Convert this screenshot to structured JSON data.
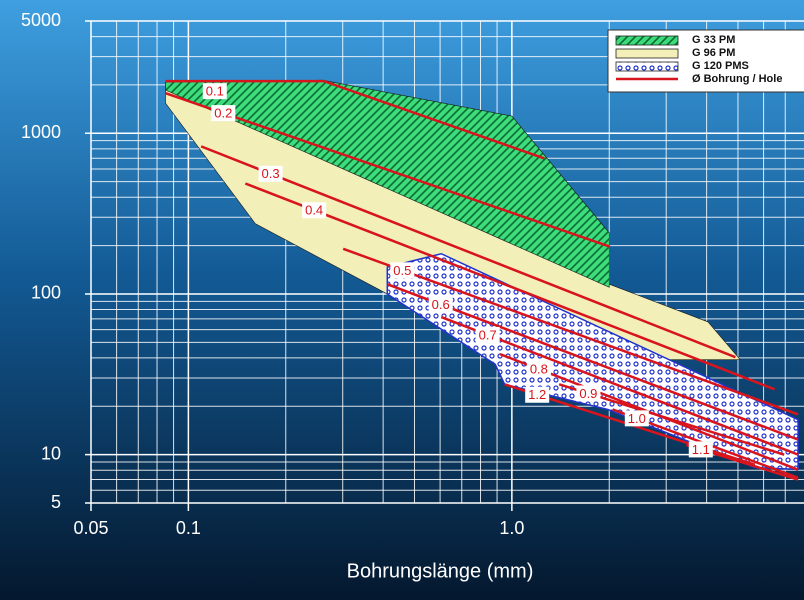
{
  "chart_data": {
    "type": "region",
    "x_label": "Bohrungslänge (mm)",
    "log_x": true,
    "log_y": true,
    "grid": true,
    "legend": "upper right",
    "xlim": [
      0.05,
      8
    ],
    "ylim": [
      5,
      5000
    ],
    "xticks": [
      0.05,
      0.1,
      {
        "value": 1,
        "label": "1.0"
      }
    ],
    "yticks": [
      5,
      10,
      100,
      1000,
      5000
    ],
    "x_minor_ticks": [
      0.06,
      0.07,
      0.08,
      0.09,
      0.2,
      0.3,
      0.4,
      0.5,
      0.6,
      0.7,
      0.8,
      0.9,
      2,
      3,
      4,
      5,
      6,
      7
    ],
    "y_minor_ticks": [
      6,
      7,
      8,
      9,
      20,
      30,
      40,
      50,
      60,
      70,
      80,
      90,
      200,
      300,
      400,
      500,
      600,
      700,
      800,
      900,
      2000,
      3000,
      4000
    ],
    "regions": [
      {
        "name": "G 96 PM",
        "color": "#f3efb8",
        "pattern": "solid",
        "x": [
          0.085,
          2.0,
          4.04,
          5.08,
          0.92,
          0.412,
          0.161,
          0.085
        ],
        "y": [
          2054,
          115,
          67,
          39,
          39,
          100,
          274,
          1540
        ]
      },
      {
        "name": "G 33 PM",
        "color": "#3ddc7a",
        "pattern": "hatch",
        "x": [
          0.085,
          0.26,
          1.0,
          2.0,
          2.0,
          0.085
        ],
        "y": [
          2080,
          2140,
          1280,
          240,
          110,
          1860
        ]
      },
      {
        "name": "G 120 PMS",
        "color": "#2233cc",
        "pattern": "dots",
        "x": [
          0.412,
          0.605,
          7.67,
          7.67,
          5.64,
          1.98,
          0.95,
          0.888,
          0.412
        ],
        "y": [
          147,
          178,
          16.5,
          8.1,
          8.3,
          19.1,
          27.4,
          36.5,
          100
        ]
      }
    ],
    "lines": {
      "name": "Ø Bohrung / Hole",
      "color": "#d8141c",
      "series": [
        {
          "label": "0.1",
          "x": [
            0.085,
            0.262,
            1.26
          ],
          "y": [
            2113,
            2113,
            698
          ]
        },
        {
          "label": "0.2",
          "x": [
            0.085,
            2.01
          ],
          "y": [
            1778,
            197
          ]
        },
        {
          "label": "0.3",
          "x": [
            0.1095,
            4.91
          ],
          "y": [
            829,
            40.4
          ]
        },
        {
          "label": "0.4",
          "x": [
            0.15,
            6.49
          ],
          "y": [
            487,
            25.5
          ]
        },
        {
          "label": "0.5",
          "x": [
            0.301,
            7.67
          ],
          "y": [
            191,
            17.8
          ]
        },
        {
          "label": "0.6",
          "x": [
            0.412,
            7.67
          ],
          "y": [
            115,
            12.4
          ]
        },
        {
          "label": "0.7",
          "x": [
            0.605,
            7.67
          ],
          "y": [
            71.8,
            10
          ]
        },
        {
          "label": "0.8",
          "x": [
            0.92,
            7.67
          ],
          "y": [
            42.2,
            8.06
          ]
        },
        {
          "label": "0.9",
          "x": [
            1.4,
            6.95
          ],
          "y": [
            27.4,
            10
          ]
        },
        {
          "label": "1.0",
          "x": [
            2.05,
            7.67
          ],
          "y": [
            19.1,
            7.18
          ]
        },
        {
          "label": "1.1",
          "x": [
            3.46,
            7.67
          ],
          "y": [
            11.5,
            6.98
          ]
        },
        {
          "label": "1.2",
          "x": [
            0.95,
            5.64
          ],
          "y": [
            27.4,
            8.66
          ]
        }
      ]
    }
  }
}
